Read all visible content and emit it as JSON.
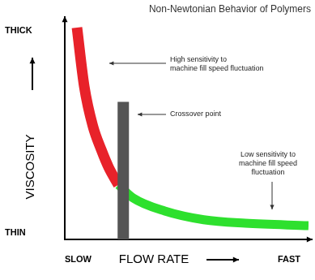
{
  "chart_data": {
    "type": "line",
    "title": "Non-Newtonian Behavior of Polymers",
    "x_label": "FLOW RATE",
    "y_label": "VISCOSITY",
    "x_end_labels": [
      "SLOW",
      "FAST"
    ],
    "y_end_labels": [
      "THIN",
      "THICK"
    ],
    "xlim": [
      0,
      100
    ],
    "ylim": [
      0,
      100
    ],
    "xticks": [],
    "yticks": [],
    "tick_labels": false,
    "grid": false,
    "series": [
      {
        "color": "#e8222a",
        "line_style": "solid",
        "marker": "none",
        "x": [
          5,
          8,
          11.5,
          15,
          18,
          22
        ],
        "values": [
          97,
          70,
          52,
          41,
          33,
          25
        ],
        "note": [
          "High sensitivity to",
          "machine fill speed fluctuation"
        ]
      },
      {
        "color": "#2ee02e",
        "line_style": "solid",
        "marker": "none",
        "x": [
          22,
          28,
          41,
          57,
          74,
          100
        ],
        "values": [
          25,
          19,
          13,
          9,
          7.4,
          6.3
        ],
        "note": [
          "Low sensitivity to",
          "machine fill speed",
          "fluctuation"
        ]
      }
    ],
    "crossover": {
      "label": "Crossover point",
      "x": 24,
      "y": 63,
      "color": "#555555"
    }
  }
}
